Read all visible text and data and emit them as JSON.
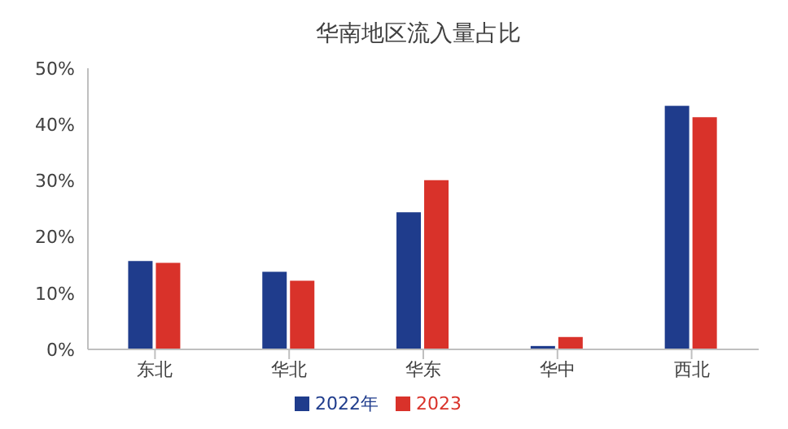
{
  "chart_data": {
    "type": "bar",
    "title": "华南地区流入量占比",
    "categories": [
      "东北",
      "华北",
      "华东",
      "华中",
      "西北"
    ],
    "series": [
      {
        "name": "2022年",
        "color": "#1f3c8c",
        "values": [
          15.7,
          13.8,
          24.4,
          0.6,
          43.3
        ]
      },
      {
        "name": "2023",
        "color": "#d9322a",
        "values": [
          15.4,
          12.2,
          30.1,
          2.2,
          41.3
        ]
      }
    ],
    "ylim": [
      0,
      50
    ],
    "yticks": [
      {
        "value": 0,
        "label": "0%"
      },
      {
        "value": 10,
        "label": "10%"
      },
      {
        "value": 20,
        "label": "20%"
      },
      {
        "value": 30,
        "label": "30%"
      },
      {
        "value": 40,
        "label": "40%"
      },
      {
        "value": 50,
        "label": "50%"
      }
    ],
    "grid": false,
    "legend": "bottom"
  }
}
